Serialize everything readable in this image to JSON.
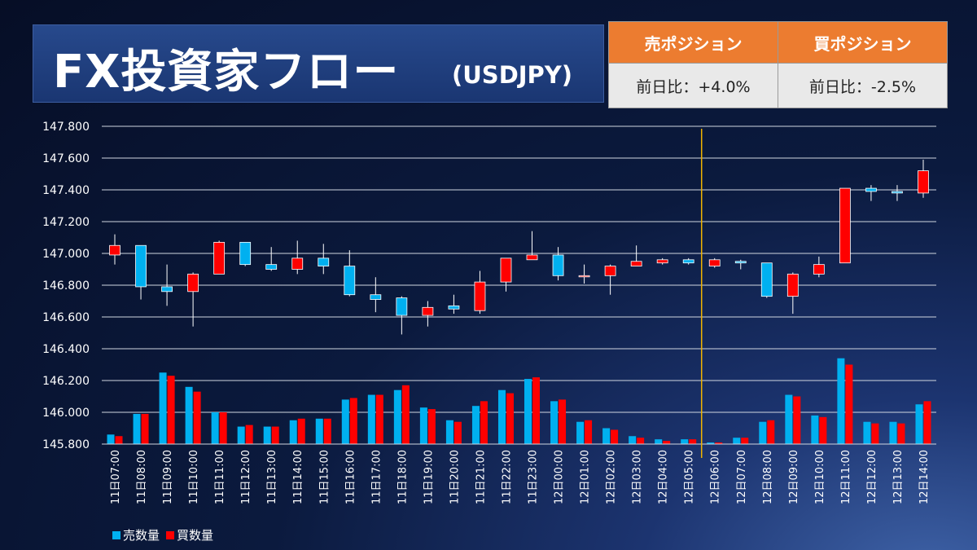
{
  "header": {
    "title": "FX投資家フロー",
    "subtitle": "(USDJPY)"
  },
  "positions": {
    "sell_label": "売ポジション",
    "buy_label": "買ポジション",
    "sell_change": "前日比：+4.0%",
    "buy_change": "前日比：-2.5%"
  },
  "colors": {
    "up": "#ff0000",
    "down": "#00b0f0",
    "sell_bar": "#00b0f0",
    "buy_bar": "#ff0000",
    "grid": "#d0d6e0",
    "marker": "#f0b400"
  },
  "chart_data": {
    "type": "candlestick",
    "ylim": [
      145.8,
      147.8
    ],
    "yticks": [
      "147.800",
      "147.600",
      "147.400",
      "147.200",
      "147.000",
      "146.800",
      "146.600",
      "146.400",
      "146.200",
      "146.000",
      "145.800"
    ],
    "grid": true,
    "categories": [
      "11日07:00",
      "11日08:00",
      "11日09:00",
      "11日10:00",
      "11日11:00",
      "11日12:00",
      "11日13:00",
      "11日14:00",
      "11日15:00",
      "11日16:00",
      "11日17:00",
      "11日18:00",
      "11日19:00",
      "11日20:00",
      "11日21:00",
      "11日22:00",
      "11日23:00",
      "12日00:00",
      "12日01:00",
      "12日02:00",
      "12日03:00",
      "12日04:00",
      "12日05:00",
      "12日06:00",
      "12日07:00",
      "12日08:00",
      "12日09:00",
      "12日10:00",
      "12日11:00",
      "12日12:00",
      "12日13:00",
      "12日14:00"
    ],
    "ohlc": [
      {
        "o": 146.99,
        "h": 147.12,
        "l": 146.93,
        "c": 147.05
      },
      {
        "o": 147.05,
        "h": 147.05,
        "l": 146.71,
        "c": 146.79
      },
      {
        "o": 146.79,
        "h": 146.93,
        "l": 146.67,
        "c": 146.76
      },
      {
        "o": 146.76,
        "h": 146.88,
        "l": 146.54,
        "c": 146.87
      },
      {
        "o": 146.87,
        "h": 147.08,
        "l": 146.87,
        "c": 147.07
      },
      {
        "o": 147.07,
        "h": 147.07,
        "l": 146.92,
        "c": 146.93
      },
      {
        "o": 146.93,
        "h": 147.04,
        "l": 146.89,
        "c": 146.9
      },
      {
        "o": 146.9,
        "h": 147.08,
        "l": 146.87,
        "c": 146.97
      },
      {
        "o": 146.97,
        "h": 147.06,
        "l": 146.87,
        "c": 146.92
      },
      {
        "o": 146.92,
        "h": 147.02,
        "l": 146.73,
        "c": 146.74
      },
      {
        "o": 146.74,
        "h": 146.85,
        "l": 146.63,
        "c": 146.71
      },
      {
        "o": 146.72,
        "h": 146.73,
        "l": 146.49,
        "c": 146.61
      },
      {
        "o": 146.61,
        "h": 146.7,
        "l": 146.54,
        "c": 146.66
      },
      {
        "o": 146.67,
        "h": 146.74,
        "l": 146.62,
        "c": 146.65
      },
      {
        "o": 146.64,
        "h": 146.89,
        "l": 146.62,
        "c": 146.82
      },
      {
        "o": 146.82,
        "h": 146.97,
        "l": 146.76,
        "c": 146.97
      },
      {
        "o": 146.96,
        "h": 147.14,
        "l": 146.96,
        "c": 146.99
      },
      {
        "o": 146.99,
        "h": 147.04,
        "l": 146.83,
        "c": 146.86
      },
      {
        "o": 146.86,
        "h": 146.93,
        "l": 146.81,
        "c": 146.86
      },
      {
        "o": 146.86,
        "h": 146.93,
        "l": 146.74,
        "c": 146.92
      },
      {
        "o": 146.92,
        "h": 147.05,
        "l": 146.92,
        "c": 146.95
      },
      {
        "o": 146.94,
        "h": 146.97,
        "l": 146.93,
        "c": 146.96
      },
      {
        "o": 146.96,
        "h": 146.97,
        "l": 146.93,
        "c": 146.94
      },
      {
        "o": 146.92,
        "h": 146.97,
        "l": 146.91,
        "c": 146.96
      },
      {
        "o": 146.95,
        "h": 146.96,
        "l": 146.9,
        "c": 146.94
      },
      {
        "o": 146.94,
        "h": 146.94,
        "l": 146.72,
        "c": 146.73
      },
      {
        "o": 146.73,
        "h": 146.88,
        "l": 146.62,
        "c": 146.87
      },
      {
        "o": 146.87,
        "h": 146.98,
        "l": 146.85,
        "c": 146.93
      },
      {
        "o": 146.94,
        "h": 147.41,
        "l": 146.94,
        "c": 147.41
      },
      {
        "o": 147.41,
        "h": 147.43,
        "l": 147.33,
        "c": 147.39
      },
      {
        "o": 147.39,
        "h": 147.43,
        "l": 147.33,
        "c": 147.38
      },
      {
        "o": 147.38,
        "h": 147.59,
        "l": 147.35,
        "c": 147.52
      }
    ],
    "series": [
      {
        "name": "売数量",
        "values": [
          145.86,
          145.99,
          146.25,
          146.16,
          146.0,
          145.91,
          145.91,
          145.95,
          145.96,
          146.08,
          146.11,
          146.14,
          146.03,
          145.95,
          146.04,
          146.14,
          146.21,
          146.07,
          145.94,
          145.9,
          145.85,
          145.83,
          145.83,
          145.81,
          145.84,
          145.94,
          146.11,
          145.98,
          146.34,
          145.94,
          145.94,
          146.05
        ]
      },
      {
        "name": "買数量",
        "values": [
          145.85,
          145.99,
          146.23,
          146.13,
          146.0,
          145.92,
          145.91,
          145.96,
          145.96,
          146.09,
          146.11,
          146.17,
          146.02,
          145.94,
          146.07,
          146.12,
          146.22,
          146.08,
          145.95,
          145.89,
          145.84,
          145.82,
          145.83,
          145.81,
          145.84,
          145.95,
          146.1,
          145.97,
          146.3,
          145.93,
          145.93,
          146.07
        ]
      }
    ],
    "legend": "bottom-left",
    "marker_between": [
      "12日05:00",
      "12日06:00"
    ]
  }
}
